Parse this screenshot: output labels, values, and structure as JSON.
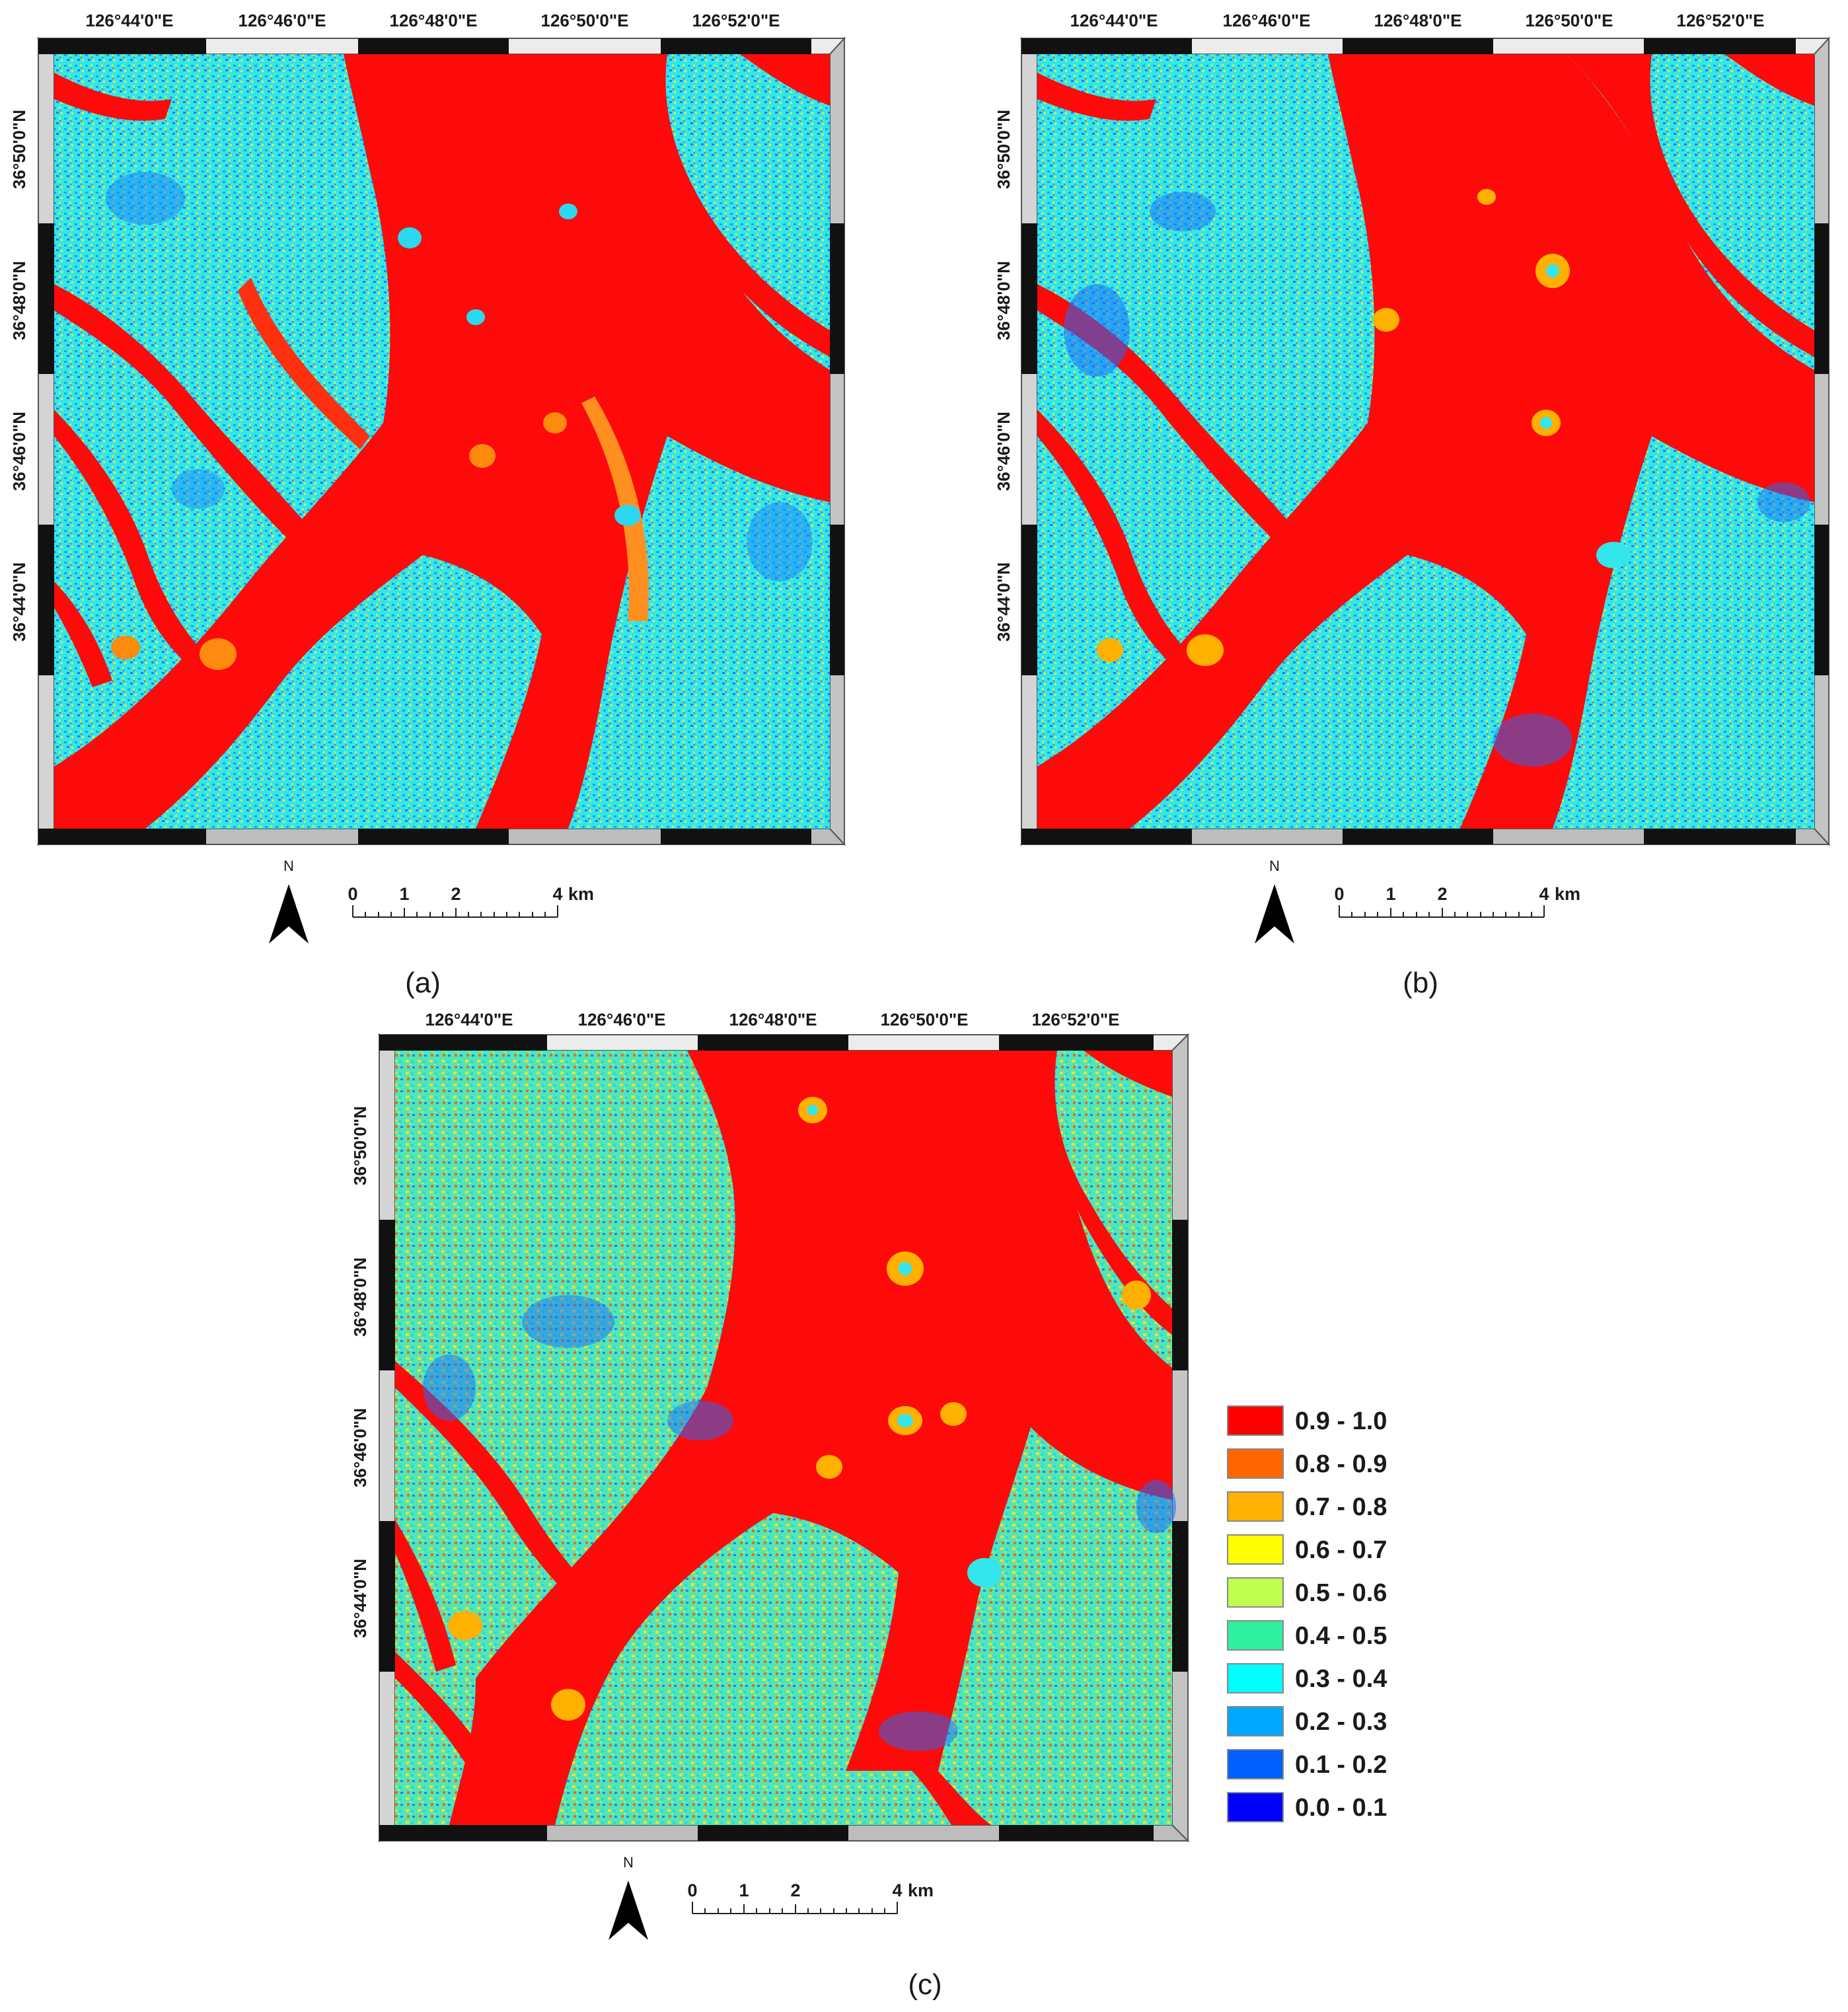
{
  "lon_labels": [
    "126°44'0\"E",
    "126°46'0\"E",
    "126°48'0\"E",
    "126°50'0\"E",
    "126°52'0\"E"
  ],
  "lat_labels": [
    "36°50'0\"N",
    "36°48'0\"N",
    "36°46'0\"N",
    "36°44'0\"N"
  ],
  "north_label": "N",
  "scale": {
    "ticks": [
      "0",
      "1",
      "2",
      "4"
    ],
    "unit": "km"
  },
  "panels": [
    {
      "id": "a",
      "caption": "(a)"
    },
    {
      "id": "b",
      "caption": "(b)"
    },
    {
      "id": "c",
      "caption": "(c)"
    }
  ],
  "legend": [
    {
      "label": "0.9 - 1.0",
      "color": "#ff0000"
    },
    {
      "label": "0.8 - 0.9",
      "color": "#ff6600"
    },
    {
      "label": "0.7 - 0.8",
      "color": "#ffb000"
    },
    {
      "label": "0.6 - 0.7",
      "color": "#ffff00"
    },
    {
      "label": "0.5 - 0.6",
      "color": "#c0ff50"
    },
    {
      "label": "0.4 - 0.5",
      "color": "#30f0a0"
    },
    {
      "label": "0.3 - 0.4",
      "color": "#00ffff"
    },
    {
      "label": "0.2 - 0.3",
      "color": "#00a8ff"
    },
    {
      "label": "0.1 - 0.2",
      "color": "#0060ff"
    },
    {
      "label": "0.0 - 0.1",
      "color": "#0000ff"
    }
  ]
}
